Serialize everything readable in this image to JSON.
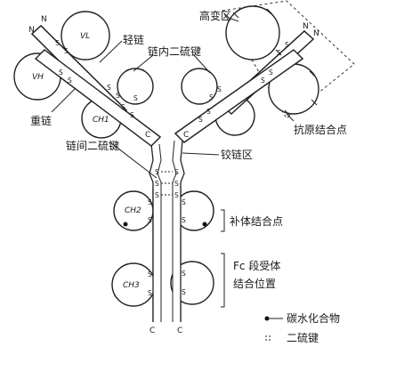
{
  "labels": {
    "variable_region": "高变区",
    "light_chain": "轻链",
    "intrachain_disulfide": "链内二硫键",
    "heavy_chain": "重链",
    "antigen_binding_site": "抗原结合点",
    "interchain_disulfide": "链间二硫键",
    "hinge_region": "铰链区",
    "complement_binding_site": "补体结合点",
    "fc_receptor_site_line1": "Fc 段受体",
    "fc_receptor_site_line2": "结合位置",
    "legend_carbohydrate": "碳水化合物",
    "legend_disulfide": "二硫键"
  },
  "domains": {
    "vl": "VL",
    "vh": "VH",
    "ch1": "CH1",
    "ch2": "CH2",
    "ch3": "CH3"
  },
  "termini": {
    "n": "N",
    "c": "C"
  },
  "bond_symbol": "S"
}
